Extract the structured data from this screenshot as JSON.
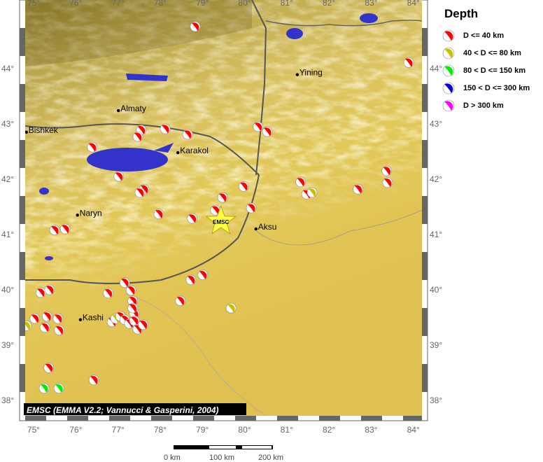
{
  "map": {
    "lon_ticks": [
      "75°",
      "76°",
      "77°",
      "78°",
      "79°",
      "80°",
      "81°",
      "82°",
      "83°",
      "84°"
    ],
    "lat_ticks": [
      "44°",
      "43°",
      "42°",
      "41°",
      "40°",
      "39°",
      "38°"
    ],
    "lon_range": [
      74.8,
      84.2
    ],
    "lat_range": [
      37.7,
      44.9
    ],
    "credit": "EMSC (EMMA V2.2; Vannucci & Gasperini, 2004)",
    "marker_label": "EMSC",
    "marker": {
      "lon": 79.44,
      "lat": 41.24
    },
    "cities": [
      {
        "name": "Bishkek",
        "lon": 74.83,
        "lat": 42.85
      },
      {
        "name": "Almaty",
        "lon": 77.01,
        "lat": 43.24
      },
      {
        "name": "Karakol",
        "lon": 78.42,
        "lat": 42.48
      },
      {
        "name": "Naryn",
        "lon": 76.04,
        "lat": 41.35
      },
      {
        "name": "Yining",
        "lon": 81.25,
        "lat": 43.89
      },
      {
        "name": "Aksu",
        "lon": 80.27,
        "lat": 41.1
      },
      {
        "name": "Kashi",
        "lon": 76.11,
        "lat": 39.46
      }
    ],
    "events": [
      [
        78.83,
        44.76,
        0
      ],
      [
        83.89,
        44.11,
        0
      ],
      [
        77.55,
        42.89,
        0
      ],
      [
        77.47,
        42.77,
        0
      ],
      [
        78.12,
        42.91,
        0
      ],
      [
        78.65,
        42.81,
        0
      ],
      [
        80.32,
        42.95,
        0
      ],
      [
        80.54,
        42.86,
        0
      ],
      [
        76.39,
        42.58,
        0
      ],
      [
        77.02,
        42.05,
        0
      ],
      [
        77.62,
        41.82,
        0
      ],
      [
        77.52,
        41.76,
        0
      ],
      [
        77.97,
        41.37,
        0
      ],
      [
        78.76,
        41.29,
        0
      ],
      [
        79.31,
        41.44,
        0
      ],
      [
        79.48,
        41.67,
        0
      ],
      [
        79.98,
        41.87,
        0
      ],
      [
        80.16,
        41.48,
        0
      ],
      [
        81.33,
        41.95,
        0
      ],
      [
        81.47,
        41.73,
        0
      ],
      [
        81.6,
        41.76,
        1
      ],
      [
        82.69,
        41.82,
        0
      ],
      [
        83.37,
        42.15,
        0
      ],
      [
        83.39,
        41.94,
        0
      ],
      [
        75.5,
        41.08,
        0
      ],
      [
        75.75,
        41.1,
        0
      ],
      [
        75.17,
        39.95,
        0
      ],
      [
        75.38,
        40.0,
        0
      ],
      [
        76.77,
        39.94,
        0
      ],
      [
        77.16,
        40.13,
        0
      ],
      [
        77.31,
        39.99,
        0
      ],
      [
        77.35,
        39.8,
        0
      ],
      [
        77.39,
        39.57,
        0
      ],
      [
        78.48,
        39.8,
        0
      ],
      [
        78.73,
        40.18,
        0
      ],
      [
        79.01,
        40.27,
        0
      ],
      [
        79.68,
        39.67,
        1
      ],
      [
        75.03,
        39.48,
        0
      ],
      [
        75.32,
        39.52,
        0
      ],
      [
        75.58,
        39.48,
        0
      ],
      [
        75.27,
        39.32,
        0
      ],
      [
        75.61,
        39.27,
        0
      ],
      [
        76.86,
        39.42,
        0
      ],
      [
        76.94,
        39.48,
        1
      ],
      [
        77.06,
        39.52,
        0
      ],
      [
        77.16,
        39.46,
        0
      ],
      [
        77.27,
        39.39,
        0
      ],
      [
        77.39,
        39.44,
        0
      ],
      [
        77.47,
        39.29,
        0
      ],
      [
        77.6,
        39.37,
        0
      ],
      [
        77.35,
        39.67,
        0
      ],
      [
        74.83,
        39.35,
        1
      ],
      [
        75.36,
        38.59,
        0
      ],
      [
        76.43,
        38.37,
        0
      ],
      [
        75.25,
        38.22,
        2
      ],
      [
        75.6,
        38.22,
        2
      ]
    ]
  },
  "legend": {
    "title": "Depth",
    "items": [
      {
        "label": "D <= 40 km",
        "color": "#ff0000"
      },
      {
        "label": "40 < D <= 80 km",
        "color": "#c8c000"
      },
      {
        "label": "80 < D <= 150 km",
        "color": "#00ee00"
      },
      {
        "label": "150 < D <= 300 km",
        "color": "#0000dd"
      },
      {
        "label": "D > 300 km",
        "color": "#ff00ff"
      }
    ]
  },
  "scale_bar": {
    "labels": [
      "0 km",
      "100 km",
      "200 km"
    ]
  }
}
